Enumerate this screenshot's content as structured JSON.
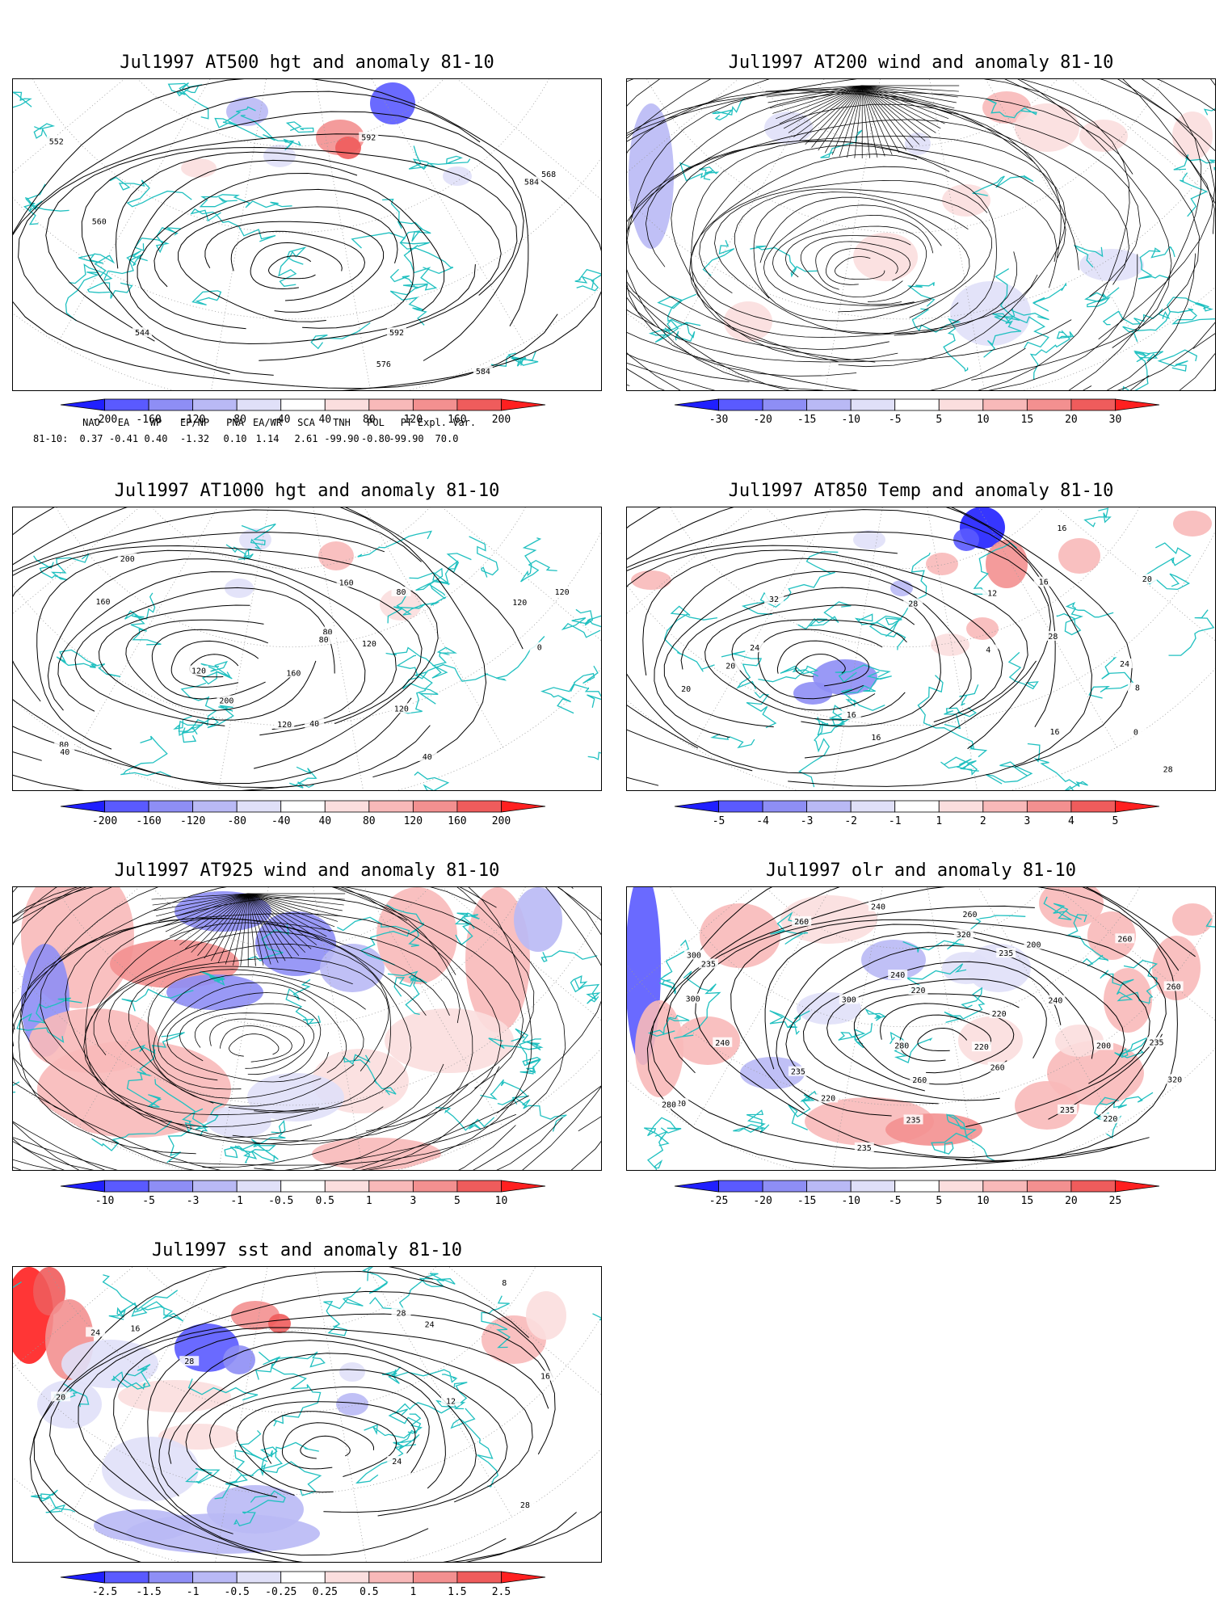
{
  "panels": [
    {
      "id": "p500",
      "title": "Jul1997 AT500 hgt and anomaly 81-10",
      "colorbar": [
        "-200",
        "-160",
        "-120",
        "-80",
        "-40",
        "40",
        "80",
        "120",
        "160",
        "200"
      ],
      "contour_labels": [
        "544",
        "552",
        "560",
        "568",
        "576",
        "584",
        "592",
        "584",
        "592"
      ]
    },
    {
      "id": "p200",
      "title": "Jul1997 AT200 wind and anomaly 81-10",
      "colorbar": [
        "-30",
        "-20",
        "-15",
        "-10",
        "-5",
        "5",
        "10",
        "15",
        "20",
        "30"
      ],
      "contour_labels": []
    },
    {
      "id": "p1000",
      "title": "Jul1997 AT1000 hgt and anomaly 81-10",
      "colorbar": [
        "-200",
        "-160",
        "-120",
        "-80",
        "-40",
        "40",
        "80",
        "120",
        "160",
        "200"
      ],
      "contour_labels": [
        "120",
        "80",
        "80",
        "120",
        "40",
        "160",
        "200",
        "160",
        "200",
        "160",
        "80",
        "120",
        "80",
        "120",
        "120",
        "0",
        "40",
        "40",
        "120"
      ]
    },
    {
      "id": "p850",
      "title": "Jul1997 AT850 Temp and anomaly 81-10",
      "colorbar": [
        "-5",
        "-4",
        "-3",
        "-2",
        "-1",
        "1",
        "2",
        "3",
        "4",
        "5"
      ],
      "contour_labels": [
        "16",
        "20",
        "20",
        "0",
        "4",
        "8",
        "24",
        "28",
        "32",
        "12",
        "16",
        "24",
        "28",
        "28",
        "20",
        "16",
        "16",
        "16"
      ]
    },
    {
      "id": "p925",
      "title": "Jul1997 AT925 wind and anomaly 81-10",
      "colorbar": [
        "-10",
        "-5",
        "-3",
        "-1",
        "-0.5",
        "0.5",
        "1",
        "3",
        "5",
        "10"
      ],
      "contour_labels": []
    },
    {
      "id": "polr",
      "title": "Jul1997 olr and anomaly 81-10",
      "colorbar": [
        "-25",
        "-20",
        "-15",
        "-10",
        "-5",
        "5",
        "10",
        "15",
        "20",
        "25"
      ],
      "contour_labels": [
        "200",
        "200",
        "220",
        "260",
        "235",
        "240",
        "280",
        "300",
        "220",
        "240",
        "235",
        "260",
        "235",
        "235",
        "220",
        "260",
        "280",
        "300",
        "320",
        "320",
        "300",
        "220",
        "260",
        "235",
        "240",
        "260",
        "235",
        "220",
        "220",
        "240",
        "235",
        "260"
      ]
    },
    {
      "id": "psst",
      "title": "Jul1997 sst and anomaly 81-10",
      "colorbar": [
        "-2.5",
        "-1.5",
        "-1",
        "-0.5",
        "-0.25",
        "0.25",
        "0.5",
        "1",
        "1.5",
        "2.5"
      ],
      "contour_labels": [
        "28",
        "8",
        "12",
        "16",
        "16",
        "20",
        "24",
        "28",
        "28",
        "24",
        "24"
      ]
    }
  ],
  "teleconnections": {
    "header": [
      "NAO",
      "EA",
      "WP",
      "EP/NP",
      "PNA",
      "EA/WR",
      "SCA",
      "TNH",
      "POL",
      "PT",
      "Expl. Var."
    ],
    "row_label": "81-10:",
    "values": [
      "0.37",
      "-0.41",
      "0.40",
      "-1.32",
      "0.10",
      "1.14",
      "2.61",
      "-99.90",
      "-0.80",
      "-99.90",
      "70.0"
    ]
  },
  "colors": {
    "neg": [
      "#2020ff",
      "#5a5aff",
      "#8e8ef5",
      "#b9b9f5",
      "#e0e0f8"
    ],
    "pos": [
      "#fbdede",
      "#f8b9b9",
      "#f39090",
      "#ef5c5c",
      "#ff2020"
    ],
    "coast": "#20c0c0",
    "contour": "#000000"
  }
}
